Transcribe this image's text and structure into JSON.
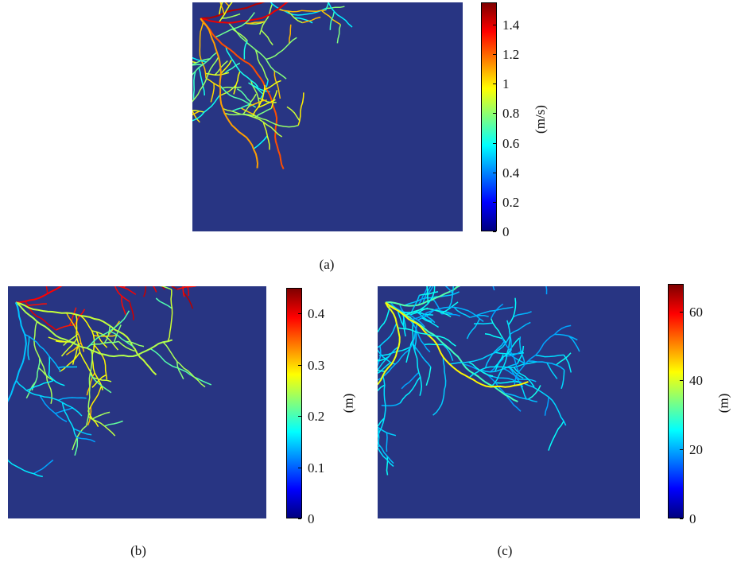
{
  "panels": [
    {
      "caption": "(a)",
      "unit": "(m/s)",
      "ticks": [
        "0",
        "0.2",
        "0.4",
        "0.6",
        "0.8",
        "1",
        "1.2",
        "1.4"
      ],
      "tick_values": [
        0,
        0.2,
        0.4,
        0.6,
        0.8,
        1,
        1.2,
        1.4
      ],
      "range": [
        0,
        1.55
      ],
      "colormap": "jet"
    },
    {
      "caption": "(b)",
      "unit": "(m)",
      "ticks": [
        "0",
        "0.1",
        "0.2",
        "0.3",
        "0.4"
      ],
      "tick_values": [
        0,
        0.1,
        0.2,
        0.3,
        0.4
      ],
      "range": [
        0,
        0.45
      ],
      "colormap": "jet"
    },
    {
      "caption": "(c)",
      "unit": "(m)",
      "ticks": [
        "0",
        "20",
        "40",
        "60"
      ],
      "tick_values": [
        0,
        20,
        40,
        60
      ],
      "range": [
        0,
        68
      ],
      "colormap": "jet"
    }
  ],
  "colors": {
    "background": "#283583",
    "jet": [
      "#00007f",
      "#0000ff",
      "#007fff",
      "#00ffff",
      "#7fff7f",
      "#ffff00",
      "#ff7f00",
      "#ff0000",
      "#7f0000"
    ]
  }
}
